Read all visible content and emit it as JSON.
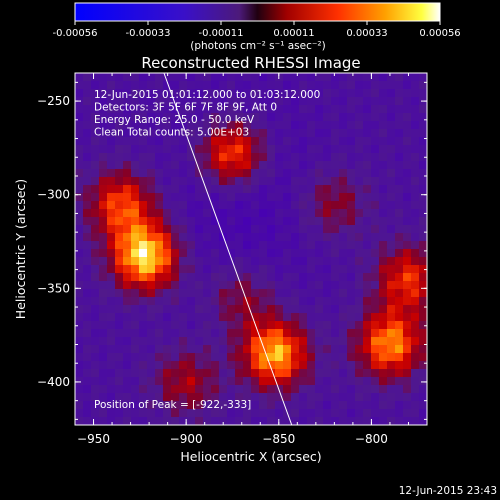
{
  "colorbar": {
    "ticks": [
      "-0.00056",
      "-0.00033",
      "-0.00011",
      "0.00011",
      "0.00033",
      "0.00056"
    ],
    "unit_label": "(photons cm⁻² s⁻¹ asec⁻²)"
  },
  "chart_data": {
    "type": "heatmap",
    "title": "Reconstructed RHESSI Image",
    "xlabel": "Heliocentric X (arcsec)",
    "ylabel": "Heliocentric Y (arcsec)",
    "xlim": [
      -960,
      -770
    ],
    "ylim": [
      -423,
      -235
    ],
    "xticks": [
      -950,
      -900,
      -850,
      -800
    ],
    "xtick_labels": [
      "−950",
      "−900",
      "−850",
      "−800"
    ],
    "yticks": [
      -250,
      -300,
      -350,
      -400
    ],
    "ytick_labels": [
      "−250",
      "−300",
      "−350",
      "−400"
    ],
    "colormap": "blue-purple-red-orange-yellow-white",
    "value_range": [
      -0.00056,
      0.00056
    ],
    "annotations": [
      "12-Jun-2015 01:01:12.000 to 01:03:12.000",
      "Detectors: 3F 5F 6F 7F 8F 9F, Att 0",
      "Energy Range: 25.0 - 50.0 keV",
      "Clean     Total counts: 5.00E+03"
    ],
    "peak_label": "Position of Peak = [-922,-333]",
    "peak": [
      -922,
      -333
    ],
    "sources": [
      {
        "x": -922,
        "y": -333,
        "intensity": 1.0
      },
      {
        "x": -935,
        "y": -305,
        "intensity": 0.65
      },
      {
        "x": -875,
        "y": -278,
        "intensity": 0.75
      },
      {
        "x": -852,
        "y": -385,
        "intensity": 0.9
      },
      {
        "x": -790,
        "y": -380,
        "intensity": 0.8
      },
      {
        "x": -780,
        "y": -345,
        "intensity": 0.6
      },
      {
        "x": -900,
        "y": -400,
        "intensity": 0.4
      },
      {
        "x": -820,
        "y": -305,
        "intensity": 0.35
      },
      {
        "x": -870,
        "y": -355,
        "intensity": 0.35
      }
    ],
    "limb_line": [
      [
        -912,
        -235
      ],
      [
        -843,
        -423
      ]
    ]
  },
  "footer": {
    "timestamp": "12-Jun-2015 23:43"
  }
}
